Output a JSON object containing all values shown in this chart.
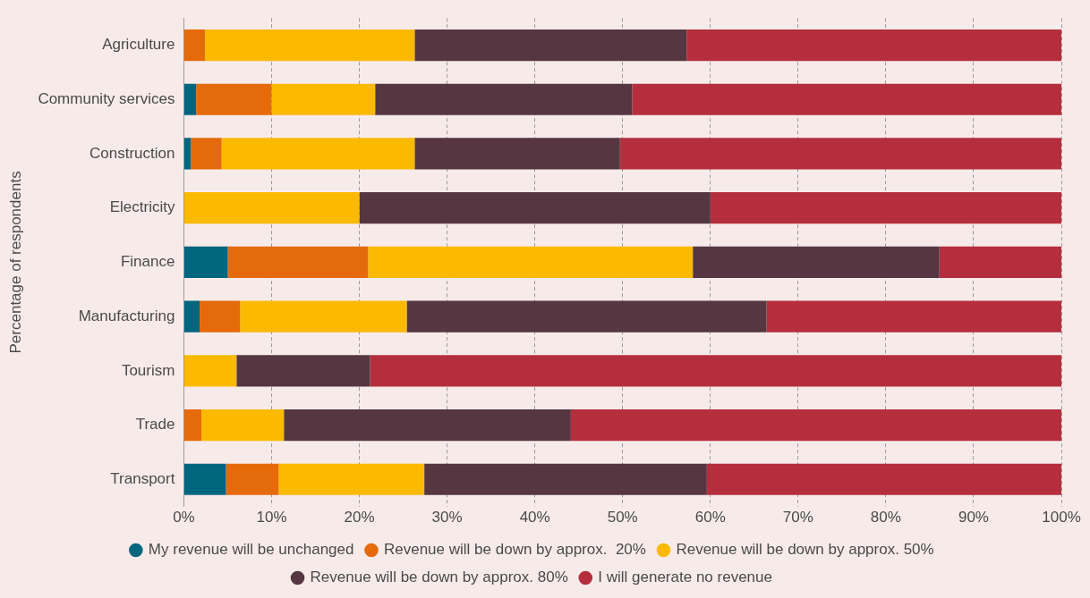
{
  "chart_data": {
    "type": "bar",
    "orientation": "horizontal",
    "stacked": true,
    "ylabel": "Percentage of respondents",
    "categories": [
      "Agriculture",
      "Community services",
      "Construction",
      "Electricity",
      "Finance",
      "Manufacturing",
      "Tourism",
      "Trade",
      "Transport"
    ],
    "series": [
      {
        "name": "My revenue will be unchanged",
        "color": "#00657f",
        "values": [
          0,
          1.4,
          0.8,
          0,
          5.0,
          1.8,
          0,
          0,
          4.8
        ]
      },
      {
        "name": "Revenue will be down by approx.  20%",
        "color": "#e56a0a",
        "values": [
          2.4,
          8.6,
          3.5,
          0,
          16.0,
          4.6,
          0,
          2.0,
          6.0
        ]
      },
      {
        "name": "Revenue will be down by approx. 50%",
        "color": "#fbb900",
        "values": [
          23.9,
          11.8,
          22.0,
          20.0,
          37.0,
          19.0,
          6.0,
          9.4,
          16.6
        ]
      },
      {
        "name": "Revenue will be down by approx. 80%",
        "color": "#553641",
        "values": [
          31.0,
          29.3,
          23.4,
          40.0,
          28.1,
          41.0,
          15.2,
          32.7,
          32.2
        ]
      },
      {
        "name": "I will generate no revenue",
        "color": "#b52e3d",
        "values": [
          42.7,
          48.9,
          50.3,
          40.0,
          13.9,
          33.6,
          78.8,
          55.9,
          40.4
        ]
      }
    ],
    "xlim": [
      0,
      100
    ],
    "xticks": [
      {
        "value": 0,
        "label": "0%"
      },
      {
        "value": 10,
        "label": "10%"
      },
      {
        "value": 20,
        "label": "20%"
      },
      {
        "value": 30,
        "label": "30%"
      },
      {
        "value": 40,
        "label": "40%"
      },
      {
        "value": 50,
        "label": "50%"
      },
      {
        "value": 60,
        "label": "60%"
      },
      {
        "value": 70,
        "label": "70%"
      },
      {
        "value": 80,
        "label": "80%"
      },
      {
        "value": 90,
        "label": "90%"
      },
      {
        "value": 100,
        "label": "100%"
      }
    ],
    "grid": "x",
    "legend": "bottom",
    "marker": "circle"
  }
}
